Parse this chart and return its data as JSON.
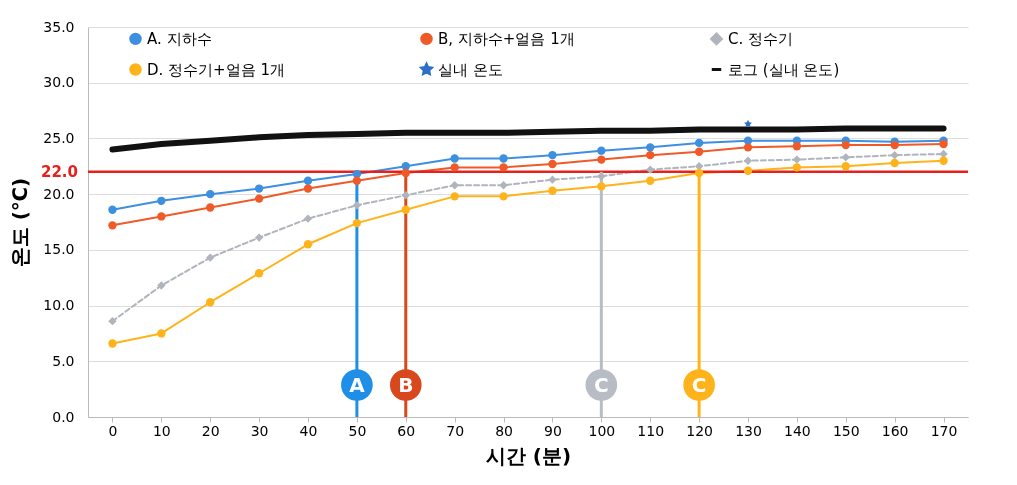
{
  "chart_data": {
    "type": "line",
    "xlabel": "시간 (분)",
    "ylabel": "온도 (℃)",
    "x": [
      0,
      10,
      20,
      30,
      40,
      50,
      60,
      70,
      80,
      90,
      100,
      110,
      120,
      130,
      140,
      150,
      160,
      170
    ],
    "series": [
      {
        "name": "A. 지하수",
        "color": "#3d8fe0",
        "marker": "circle",
        "values": [
          18.6,
          19.4,
          20.0,
          20.5,
          21.2,
          21.8,
          22.5,
          23.2,
          23.2,
          23.5,
          23.9,
          24.2,
          24.6,
          24.8,
          24.8,
          24.8,
          24.7,
          24.8
        ]
      },
      {
        "name": "B, 지하수+얼음 1개",
        "color": "#f05a28",
        "marker": "circle",
        "values": [
          17.2,
          18.0,
          18.8,
          19.6,
          20.5,
          21.2,
          21.9,
          22.4,
          22.4,
          22.7,
          23.1,
          23.5,
          23.8,
          24.2,
          24.3,
          24.4,
          24.4,
          24.5
        ]
      },
      {
        "name": "C. 정수기",
        "color": "#b0b4bc",
        "marker": "diamond",
        "line_style": "dashed",
        "values": [
          8.6,
          11.8,
          14.3,
          16.1,
          17.8,
          19.0,
          19.9,
          20.8,
          20.8,
          21.3,
          21.6,
          22.2,
          22.5,
          23.0,
          23.1,
          23.3,
          23.5,
          23.6
        ]
      },
      {
        "name": "D. 정수기+얼음 1개",
        "color": "#ffb31a",
        "marker": "circle",
        "values": [
          6.6,
          7.5,
          10.3,
          12.9,
          15.5,
          17.4,
          18.6,
          19.8,
          19.8,
          20.3,
          20.7,
          21.2,
          21.9,
          22.1,
          22.4,
          22.5,
          22.8,
          23.0
        ]
      },
      {
        "name": "실내 온도",
        "color": "#2e6fc7",
        "marker": "star",
        "values": [
          null,
          null,
          null,
          null,
          null,
          null,
          null,
          null,
          null,
          null,
          null,
          null,
          null,
          26.3,
          null,
          null,
          null,
          null
        ]
      },
      {
        "name": "로그 (실내 온도)",
        "color": "#111111",
        "marker": "none",
        "values": [
          24.0,
          24.5,
          24.8,
          25.1,
          25.3,
          25.4,
          25.5,
          25.5,
          25.5,
          25.6,
          25.7,
          25.7,
          25.8,
          25.8,
          25.8,
          25.9,
          25.9,
          25.9
        ]
      }
    ],
    "xlim": [
      -5,
      175
    ],
    "xticks": [
      0,
      10,
      20,
      30,
      40,
      50,
      60,
      70,
      80,
      90,
      100,
      110,
      120,
      130,
      140,
      150,
      160,
      170
    ],
    "ylim": [
      0,
      35
    ],
    "yticks": [
      {
        "value": 0,
        "label": "0.0"
      },
      {
        "value": 5,
        "label": "5.0"
      },
      {
        "value": 10,
        "label": "10.0"
      },
      {
        "value": 15,
        "label": "15.0"
      },
      {
        "value": 20,
        "label": "20.0"
      },
      {
        "value": 25,
        "label": "25.0"
      },
      {
        "value": 30,
        "label": "30.0"
      },
      {
        "value": 35,
        "label": "35.0"
      }
    ],
    "ref_lines": [
      {
        "axis": "y",
        "value": 22,
        "label": "22.0",
        "color": "#e8201c"
      },
      {
        "axis": "x",
        "value": 50,
        "label": "A",
        "color": "#1f8ee6"
      },
      {
        "axis": "x",
        "value": 60,
        "label": "B",
        "color": "#d9481c"
      },
      {
        "axis": "x",
        "value": 100,
        "label": "C",
        "color": "#b8bcc4"
      },
      {
        "axis": "x",
        "value": 120,
        "label": "C",
        "color": "#ffb31a"
      }
    ],
    "grid": "y",
    "legend": "top"
  }
}
